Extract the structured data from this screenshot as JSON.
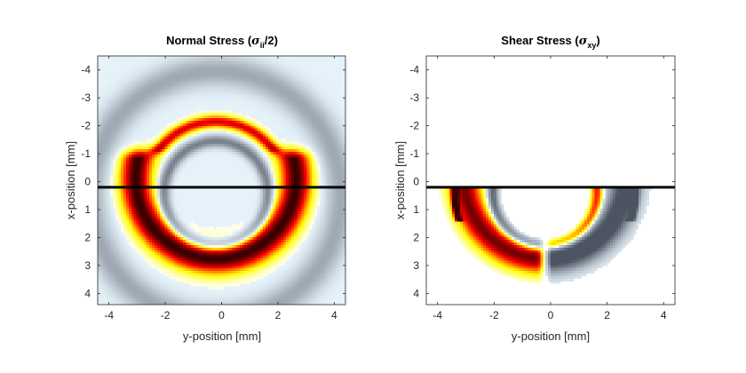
{
  "chart_data": [
    {
      "type": "heatmap",
      "title": {
        "prefix": "Normal Stress (",
        "symbol": "σ",
        "subscript": "ii",
        "suffix": "/2)"
      },
      "xlabel": "y-position [mm]",
      "ylabel": "x-position [mm]",
      "xlim": [
        -4.4,
        4.4
      ],
      "ylim": [
        -4.5,
        4.4
      ],
      "y_reversed": true,
      "xticks": [
        -4,
        -2,
        0,
        2,
        4
      ],
      "xtick_labels": [
        "-4",
        "-2",
        "0",
        "2",
        "4"
      ],
      "yticks": [
        -4,
        -3,
        -2,
        -1,
        0,
        1,
        2,
        3,
        4
      ],
      "ytick_labels": [
        "-4",
        "-3",
        "-2",
        "-1",
        "0",
        "1",
        "2",
        "3",
        "4"
      ],
      "colormap": "hot (positive) / bone (negative)",
      "grid": false,
      "line": {
        "y": 0.2,
        "color": "#000000"
      },
      "bands": [
        {
          "type": "arc",
          "center": [
            -0.2,
            -0.1
          ],
          "radius": 2.85,
          "width": 0.55,
          "amp": 1.0,
          "y_min": -0.8
        },
        {
          "type": "arc",
          "center": [
            -0.2,
            0.4
          ],
          "radius": 1.85,
          "width": 0.22,
          "amp": -0.55,
          "y_min": -1.7
        },
        {
          "type": "cap",
          "center": [
            -0.2,
            0.4
          ],
          "radius": 2.55,
          "width": 0.22,
          "amp": 0.75,
          "y_max": -1.2,
          "x_halfwidth": 3.1
        },
        {
          "type": "edge",
          "center": [
            -0.2,
            0.5
          ],
          "radius": 4.45,
          "width": 0.55,
          "amp": -0.35
        }
      ]
    },
    {
      "type": "heatmap",
      "title": {
        "prefix": "Shear Stress (",
        "symbol": "σ",
        "subscript": "xy",
        "suffix": ")"
      },
      "xlabel": "y-position [mm]",
      "ylabel": "x-position [mm]",
      "xlim": [
        -4.4,
        4.4
      ],
      "ylim": [
        -4.5,
        4.4
      ],
      "y_reversed": true,
      "xticks": [
        -4,
        -2,
        0,
        2,
        4
      ],
      "xtick_labels": [
        "-4",
        "-2",
        "0",
        "2",
        "4"
      ],
      "yticks": [
        -4,
        -3,
        -2,
        -1,
        0,
        1,
        2,
        3,
        4
      ],
      "ytick_labels": [
        "-4",
        "-3",
        "-2",
        "-1",
        "0",
        "1",
        "2",
        "3",
        "4"
      ],
      "colormap": "hot (positive) / bone (negative)",
      "grid": false,
      "line": {
        "y": 0.2,
        "color": "#000000"
      },
      "bands": [
        {
          "type": "arc",
          "center": [
            -0.2,
            -0.1
          ],
          "radius": 2.85,
          "width": 0.55,
          "amp": 0.9,
          "antisym": true
        },
        {
          "type": "arc",
          "center": [
            -0.2,
            0.4
          ],
          "radius": 1.85,
          "width": 0.2,
          "amp": -0.7,
          "antisym": true
        },
        {
          "type": "lip",
          "center": [
            -0.2,
            0.4
          ],
          "radius": 3.2,
          "width": 0.12,
          "amp": 0.9,
          "antisym": true
        }
      ]
    }
  ]
}
